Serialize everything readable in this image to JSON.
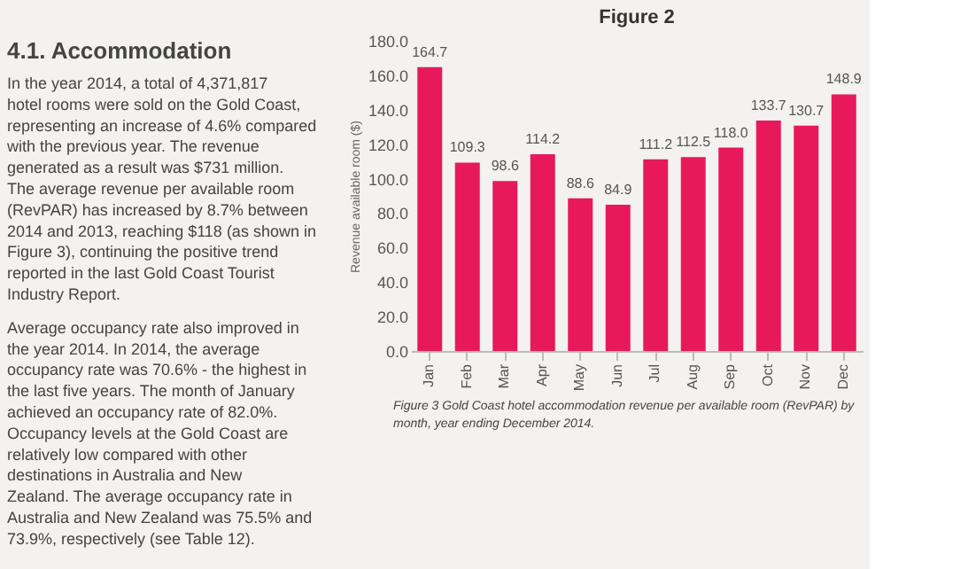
{
  "chart_data": {
    "type": "bar",
    "title": "Figure 2",
    "ylabel": "Revenue available room ($)",
    "categories": [
      "Jan",
      "Feb",
      "Mar",
      "Apr",
      "May",
      "Jun",
      "Jul",
      "Aug",
      "Sep",
      "Oct",
      "Nov",
      "Dec"
    ],
    "values": [
      164.7,
      109.3,
      98.6,
      114.2,
      88.6,
      84.9,
      111.2,
      112.5,
      118.0,
      133.7,
      130.7,
      148.9
    ],
    "color": "#e8195a",
    "ylim": [
      0,
      180
    ],
    "yticks": [
      {
        "value": 0,
        "label": "0.0"
      },
      {
        "value": 20,
        "label": "20.0"
      },
      {
        "value": 40,
        "label": "40.0"
      },
      {
        "value": 60,
        "label": "60.0"
      },
      {
        "value": 80,
        "label": "80.0"
      },
      {
        "value": 100,
        "label": "100.0"
      },
      {
        "value": 120,
        "label": "120.0"
      },
      {
        "value": 140,
        "label": "140.0"
      },
      {
        "value": 160,
        "label": "160.0"
      },
      {
        "value": 180,
        "label": "180.0"
      }
    ],
    "value_labels": [
      "164.7",
      "109.3",
      "98.6",
      "114.2",
      "88.6",
      "84.9",
      "111.2",
      "112.5",
      "118.0",
      "133.7",
      "130.7",
      "148.9"
    ],
    "grid": false,
    "annotations": [
      "4.1. Accommodation",
      "In the year 2014, a total of 4,371,817 hotel rooms were sold on the Gold Coast, representing an increase of 4.6% compared with the previous year. The revenue generated as a result was $731 million. The average revenue per available room (RevPAR) has increased by 8.7% between 2014 and 2013, reaching $118 (as shown in Figure 3), continuing the positive trend reported in the last Gold Coast Tourist Industry Report.",
      "Average occupancy rate also improved in the year 2014. In 2014, the average occupancy rate was 70.6% - the highest in the last five years. The month of January achieved an occupancy rate of 82.0%. Occupancy levels at the Gold Coast are relatively low compared with other destinations in Australia and New Zealand. The average occupancy rate in Australia and New Zealand was 75.5% and 73.9%, respectively (see Table 12).",
      "Figure 3 Gold Coast hotel accommodation revenue per available room (RevPAR) by month, year ending December 2014."
    ]
  }
}
